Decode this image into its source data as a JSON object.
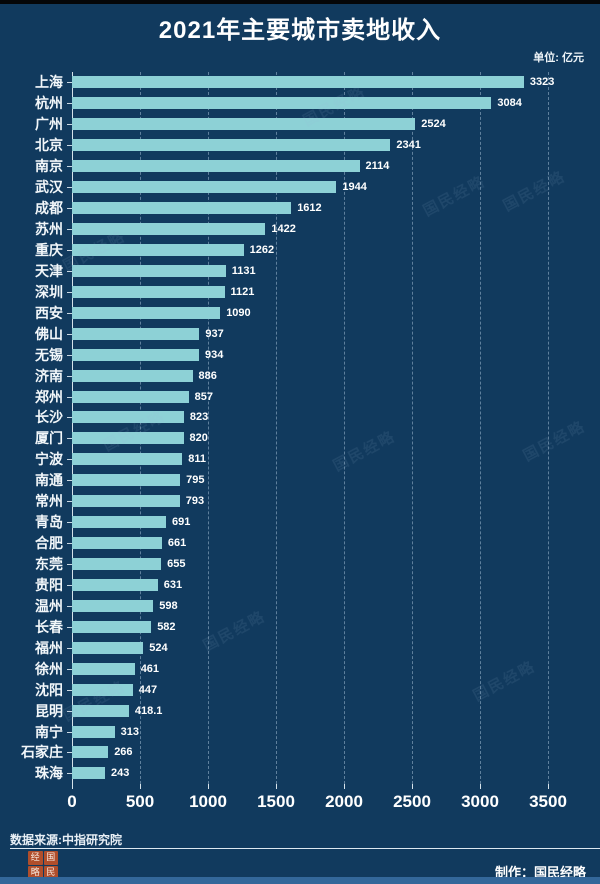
{
  "title": "2021年主要城市卖地收入",
  "unit_label": "单位: 亿元",
  "source_label": "数据来源:中指研究院",
  "credit_label": "制作：国民经略",
  "watermark_text": "国民经略",
  "seal": {
    "chars": [
      "经",
      "国",
      "略",
      "民"
    ]
  },
  "colors": {
    "background": "#113a5e",
    "bar": "#8dd1d6",
    "grid": "#bed7eb",
    "text": "#ffffff",
    "seal_red": "#b04e2b",
    "bottom_strip": "#33679a",
    "top_strip": "#050608"
  },
  "chart_data": {
    "type": "bar",
    "orientation": "horizontal",
    "title": "2021年主要城市卖地收入",
    "xlabel": "",
    "ylabel": "",
    "unit": "亿元",
    "xlim": [
      0,
      3500
    ],
    "xticks": [
      0,
      500,
      1000,
      1500,
      2000,
      2500,
      3000,
      3500
    ],
    "grid": "vertical-dashed",
    "value_labels": true,
    "categories": [
      "上海",
      "杭州",
      "广州",
      "北京",
      "南京",
      "武汉",
      "成都",
      "苏州",
      "重庆",
      "天津",
      "深圳",
      "西安",
      "佛山",
      "无锡",
      "济南",
      "郑州",
      "长沙",
      "厦门",
      "宁波",
      "南通",
      "常州",
      "青岛",
      "合肥",
      "东莞",
      "贵阳",
      "温州",
      "长春",
      "福州",
      "徐州",
      "沈阳",
      "昆明",
      "南宁",
      "石家庄",
      "珠海"
    ],
    "values": [
      3323,
      3084,
      2524,
      2341,
      2114,
      1944,
      1612,
      1422,
      1262,
      1131,
      1121,
      1090,
      937,
      934,
      886,
      857,
      823,
      820,
      811,
      795,
      793,
      691,
      661,
      655,
      631,
      598,
      582,
      524,
      461,
      447,
      418.1,
      313,
      266,
      243
    ]
  }
}
